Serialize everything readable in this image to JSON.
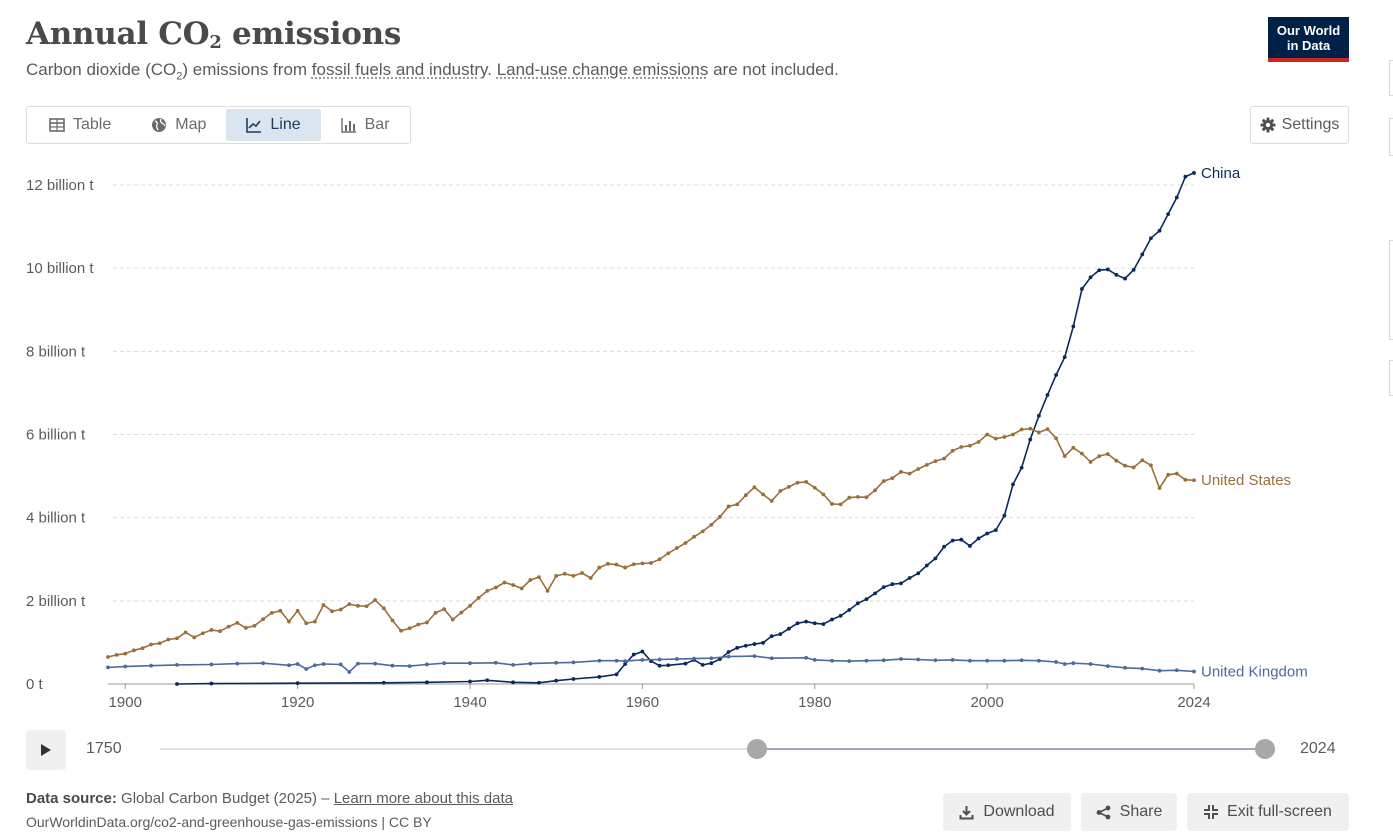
{
  "header": {
    "title_main": "Annual CO",
    "title_sub": "2",
    "title_end": " emissions",
    "subtitle_a": "Carbon dioxide (CO",
    "subtitle_sub": "2",
    "subtitle_b": ") emissions from ",
    "subtitle_link1": "fossil fuels and industry",
    "subtitle_c": ". ",
    "subtitle_link2": "Land-use change emissions",
    "subtitle_d": " are not included.",
    "logo_line1": "Our World",
    "logo_line2": "in Data"
  },
  "tabs": [
    {
      "label": "Table",
      "icon": "table-icon"
    },
    {
      "label": "Map",
      "icon": "globe-icon"
    },
    {
      "label": "Line",
      "icon": "line-chart-icon",
      "active": true
    },
    {
      "label": "Bar",
      "icon": "bar-chart-icon"
    }
  ],
  "settings_label": "Settings",
  "chart_data": {
    "type": "line",
    "xlim": [
      1898,
      2024
    ],
    "ylim": [
      0,
      12000000000
    ],
    "x_ticks": [
      1900,
      1920,
      1940,
      1960,
      1980,
      2000,
      2024
    ],
    "y_ticks": [
      {
        "value": 0,
        "label": "0 t"
      },
      {
        "value": 2000000000,
        "label": "2 billion t"
      },
      {
        "value": 4000000000,
        "label": "4 billion t"
      },
      {
        "value": 6000000000,
        "label": "6 billion t"
      },
      {
        "value": 8000000000,
        "label": "8 billion t"
      },
      {
        "value": 10000000000,
        "label": "10 billion t"
      },
      {
        "value": 12000000000,
        "label": "12 billion t"
      }
    ],
    "grid": "horizontal dashed",
    "legend": "labels at line ends (right)",
    "series": [
      {
        "name": "China",
        "color": "#0b2a5b",
        "points": [
          [
            1906,
            0.0
          ],
          [
            1910,
            0.01
          ],
          [
            1920,
            0.02
          ],
          [
            1930,
            0.03
          ],
          [
            1935,
            0.04
          ],
          [
            1940,
            0.06
          ],
          [
            1942,
            0.09
          ],
          [
            1945,
            0.04
          ],
          [
            1948,
            0.03
          ],
          [
            1950,
            0.08
          ],
          [
            1952,
            0.12
          ],
          [
            1955,
            0.17
          ],
          [
            1957,
            0.23
          ],
          [
            1958,
            0.48
          ],
          [
            1959,
            0.71
          ],
          [
            1960,
            0.78
          ],
          [
            1961,
            0.55
          ],
          [
            1962,
            0.44
          ],
          [
            1963,
            0.45
          ],
          [
            1965,
            0.49
          ],
          [
            1966,
            0.58
          ],
          [
            1967,
            0.46
          ],
          [
            1968,
            0.5
          ],
          [
            1969,
            0.6
          ],
          [
            1970,
            0.77
          ],
          [
            1971,
            0.87
          ],
          [
            1972,
            0.92
          ],
          [
            1973,
            0.96
          ],
          [
            1974,
            0.99
          ],
          [
            1975,
            1.15
          ],
          [
            1976,
            1.2
          ],
          [
            1977,
            1.33
          ],
          [
            1978,
            1.46
          ],
          [
            1979,
            1.5
          ],
          [
            1980,
            1.46
          ],
          [
            1981,
            1.44
          ],
          [
            1982,
            1.55
          ],
          [
            1983,
            1.64
          ],
          [
            1984,
            1.78
          ],
          [
            1985,
            1.94
          ],
          [
            1986,
            2.04
          ],
          [
            1987,
            2.18
          ],
          [
            1988,
            2.33
          ],
          [
            1989,
            2.4
          ],
          [
            1990,
            2.42
          ],
          [
            1991,
            2.55
          ],
          [
            1992,
            2.66
          ],
          [
            1993,
            2.85
          ],
          [
            1994,
            3.02
          ],
          [
            1995,
            3.3
          ],
          [
            1996,
            3.45
          ],
          [
            1997,
            3.47
          ],
          [
            1998,
            3.32
          ],
          [
            1999,
            3.5
          ],
          [
            2000,
            3.62
          ],
          [
            2001,
            3.7
          ],
          [
            2002,
            4.05
          ],
          [
            2003,
            4.8
          ],
          [
            2004,
            5.2
          ],
          [
            2005,
            5.88
          ],
          [
            2006,
            6.45
          ],
          [
            2007,
            6.95
          ],
          [
            2008,
            7.43
          ],
          [
            2009,
            7.86
          ],
          [
            2010,
            8.6
          ],
          [
            2011,
            9.5
          ],
          [
            2012,
            9.78
          ],
          [
            2013,
            9.95
          ],
          [
            2014,
            9.97
          ],
          [
            2015,
            9.84
          ],
          [
            2016,
            9.75
          ],
          [
            2017,
            9.96
          ],
          [
            2018,
            10.33
          ],
          [
            2019,
            10.72
          ],
          [
            2020,
            10.9
          ],
          [
            2021,
            11.3
          ],
          [
            2022,
            11.7
          ],
          [
            2023,
            12.2
          ],
          [
            2024,
            12.29
          ]
        ]
      },
      {
        "name": "United States",
        "color": "#9a6f3a",
        "points": [
          [
            1898,
            0.65
          ],
          [
            1899,
            0.7
          ],
          [
            1900,
            0.73
          ],
          [
            1901,
            0.81
          ],
          [
            1902,
            0.86
          ],
          [
            1903,
            0.95
          ],
          [
            1904,
            0.98
          ],
          [
            1905,
            1.07
          ],
          [
            1906,
            1.1
          ],
          [
            1907,
            1.24
          ],
          [
            1908,
            1.12
          ],
          [
            1909,
            1.22
          ],
          [
            1910,
            1.3
          ],
          [
            1911,
            1.27
          ],
          [
            1912,
            1.38
          ],
          [
            1913,
            1.47
          ],
          [
            1914,
            1.35
          ],
          [
            1915,
            1.4
          ],
          [
            1916,
            1.56
          ],
          [
            1917,
            1.71
          ],
          [
            1918,
            1.76
          ],
          [
            1919,
            1.5
          ],
          [
            1920,
            1.76
          ],
          [
            1921,
            1.46
          ],
          [
            1922,
            1.5
          ],
          [
            1923,
            1.9
          ],
          [
            1924,
            1.75
          ],
          [
            1925,
            1.79
          ],
          [
            1926,
            1.92
          ],
          [
            1927,
            1.88
          ],
          [
            1928,
            1.87
          ],
          [
            1929,
            2.02
          ],
          [
            1930,
            1.82
          ],
          [
            1931,
            1.53
          ],
          [
            1932,
            1.28
          ],
          [
            1933,
            1.34
          ],
          [
            1934,
            1.43
          ],
          [
            1935,
            1.48
          ],
          [
            1936,
            1.71
          ],
          [
            1937,
            1.8
          ],
          [
            1938,
            1.55
          ],
          [
            1939,
            1.72
          ],
          [
            1940,
            1.88
          ],
          [
            1941,
            2.07
          ],
          [
            1942,
            2.24
          ],
          [
            1943,
            2.32
          ],
          [
            1944,
            2.44
          ],
          [
            1945,
            2.38
          ],
          [
            1946,
            2.3
          ],
          [
            1947,
            2.5
          ],
          [
            1948,
            2.57
          ],
          [
            1949,
            2.24
          ],
          [
            1950,
            2.6
          ],
          [
            1951,
            2.65
          ],
          [
            1952,
            2.6
          ],
          [
            1953,
            2.67
          ],
          [
            1954,
            2.55
          ],
          [
            1955,
            2.8
          ],
          [
            1956,
            2.89
          ],
          [
            1957,
            2.87
          ],
          [
            1958,
            2.8
          ],
          [
            1959,
            2.88
          ],
          [
            1960,
            2.9
          ],
          [
            1961,
            2.91
          ],
          [
            1962,
            3.0
          ],
          [
            1963,
            3.14
          ],
          [
            1964,
            3.27
          ],
          [
            1965,
            3.39
          ],
          [
            1966,
            3.54
          ],
          [
            1967,
            3.67
          ],
          [
            1968,
            3.83
          ],
          [
            1969,
            4.02
          ],
          [
            1970,
            4.27
          ],
          [
            1971,
            4.32
          ],
          [
            1972,
            4.54
          ],
          [
            1973,
            4.73
          ],
          [
            1974,
            4.56
          ],
          [
            1975,
            4.4
          ],
          [
            1976,
            4.64
          ],
          [
            1977,
            4.74
          ],
          [
            1978,
            4.84
          ],
          [
            1979,
            4.86
          ],
          [
            1980,
            4.72
          ],
          [
            1981,
            4.56
          ],
          [
            1982,
            4.33
          ],
          [
            1983,
            4.32
          ],
          [
            1984,
            4.48
          ],
          [
            1985,
            4.5
          ],
          [
            1986,
            4.49
          ],
          [
            1987,
            4.66
          ],
          [
            1988,
            4.88
          ],
          [
            1989,
            4.95
          ],
          [
            1990,
            5.1
          ],
          [
            1991,
            5.06
          ],
          [
            1992,
            5.17
          ],
          [
            1993,
            5.27
          ],
          [
            1994,
            5.36
          ],
          [
            1995,
            5.42
          ],
          [
            1996,
            5.61
          ],
          [
            1997,
            5.7
          ],
          [
            1998,
            5.73
          ],
          [
            1999,
            5.82
          ],
          [
            2000,
            6.0
          ],
          [
            2001,
            5.9
          ],
          [
            2002,
            5.94
          ],
          [
            2003,
            6.0
          ],
          [
            2004,
            6.12
          ],
          [
            2005,
            6.14
          ],
          [
            2006,
            6.05
          ],
          [
            2007,
            6.13
          ],
          [
            2008,
            5.91
          ],
          [
            2009,
            5.48
          ],
          [
            2010,
            5.68
          ],
          [
            2011,
            5.54
          ],
          [
            2012,
            5.34
          ],
          [
            2013,
            5.48
          ],
          [
            2014,
            5.53
          ],
          [
            2015,
            5.37
          ],
          [
            2016,
            5.25
          ],
          [
            2017,
            5.21
          ],
          [
            2018,
            5.38
          ],
          [
            2019,
            5.26
          ],
          [
            2020,
            4.71
          ],
          [
            2021,
            5.03
          ],
          [
            2022,
            5.06
          ],
          [
            2023,
            4.91
          ],
          [
            2024,
            4.9
          ]
        ]
      },
      {
        "name": "United Kingdom",
        "color": "#4c6a9c",
        "points": [
          [
            1898,
            0.4
          ],
          [
            1900,
            0.42
          ],
          [
            1903,
            0.44
          ],
          [
            1906,
            0.46
          ],
          [
            1910,
            0.47
          ],
          [
            1913,
            0.49
          ],
          [
            1916,
            0.5
          ],
          [
            1919,
            0.45
          ],
          [
            1920,
            0.48
          ],
          [
            1921,
            0.36
          ],
          [
            1922,
            0.45
          ],
          [
            1923,
            0.48
          ],
          [
            1925,
            0.47
          ],
          [
            1926,
            0.29
          ],
          [
            1927,
            0.49
          ],
          [
            1929,
            0.49
          ],
          [
            1931,
            0.44
          ],
          [
            1933,
            0.43
          ],
          [
            1935,
            0.47
          ],
          [
            1937,
            0.5
          ],
          [
            1940,
            0.5
          ],
          [
            1943,
            0.51
          ],
          [
            1945,
            0.46
          ],
          [
            1947,
            0.49
          ],
          [
            1950,
            0.51
          ],
          [
            1952,
            0.52
          ],
          [
            1955,
            0.56
          ],
          [
            1957,
            0.56
          ],
          [
            1958,
            0.55
          ],
          [
            1960,
            0.58
          ],
          [
            1962,
            0.59
          ],
          [
            1964,
            0.6
          ],
          [
            1966,
            0.61
          ],
          [
            1968,
            0.62
          ],
          [
            1970,
            0.66
          ],
          [
            1973,
            0.67
          ],
          [
            1975,
            0.62
          ],
          [
            1979,
            0.63
          ],
          [
            1980,
            0.58
          ],
          [
            1982,
            0.56
          ],
          [
            1984,
            0.55
          ],
          [
            1986,
            0.56
          ],
          [
            1988,
            0.57
          ],
          [
            1990,
            0.6
          ],
          [
            1992,
            0.59
          ],
          [
            1994,
            0.57
          ],
          [
            1996,
            0.58
          ],
          [
            1998,
            0.56
          ],
          [
            2000,
            0.56
          ],
          [
            2002,
            0.56
          ],
          [
            2004,
            0.57
          ],
          [
            2006,
            0.56
          ],
          [
            2008,
            0.53
          ],
          [
            2009,
            0.48
          ],
          [
            2010,
            0.5
          ],
          [
            2012,
            0.48
          ],
          [
            2014,
            0.43
          ],
          [
            2016,
            0.39
          ],
          [
            2018,
            0.37
          ],
          [
            2020,
            0.32
          ],
          [
            2022,
            0.33
          ],
          [
            2024,
            0.3
          ]
        ]
      }
    ],
    "y_unit_note": "point y values in billion t"
  },
  "timeline": {
    "start_label": "1750",
    "end_label": "2024",
    "range_start": 1898,
    "range_end": 2024,
    "min_year": 1750,
    "max_year": 2024
  },
  "footer": {
    "source_label": "Data source:",
    "source_text": " Global Carbon Budget (2025) – ",
    "source_link": "Learn more about this data",
    "url_text": "OurWorldinData.org/co2-and-greenhouse-gas-emissions | CC BY",
    "download_label": "Download",
    "share_label": "Share",
    "exit_label": "Exit full-screen"
  }
}
